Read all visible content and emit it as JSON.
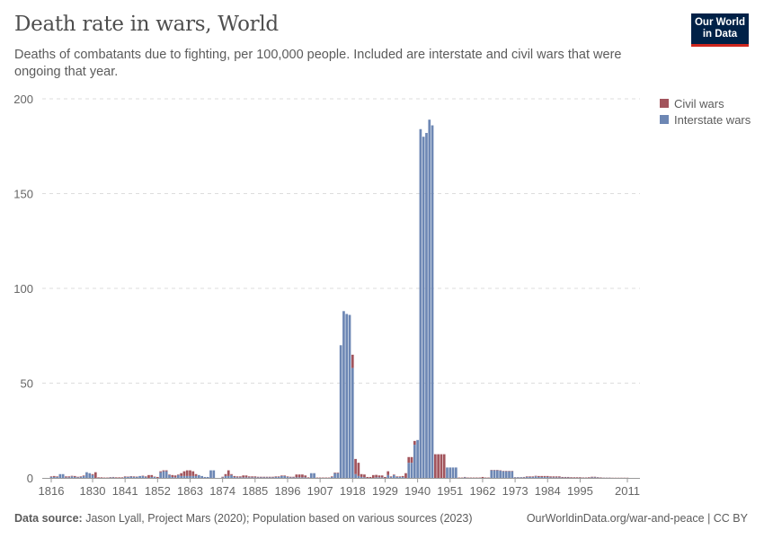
{
  "header": {
    "title": "Death rate in wars, World",
    "subtitle": "Deaths of combatants due to fighting, per 100,000 people. Included are interstate and civil wars that were ongoing that year.",
    "logo": "Our World in Data"
  },
  "footer": {
    "source_label": "Data source:",
    "source": "Jason Lyall, Project Mars (2020); Population based on various sources (2023)",
    "url": "OurWorldinData.org/war-and-peace | CC BY"
  },
  "chart_data": {
    "type": "bar",
    "stacked": true,
    "grid": true,
    "legend": "top-right",
    "ylim": [
      0,
      200
    ],
    "yticks": [
      0,
      50,
      100,
      150,
      200
    ],
    "xticks": [
      1816,
      1830,
      1841,
      1852,
      1863,
      1874,
      1885,
      1896,
      1907,
      1918,
      1929,
      1940,
      1951,
      1962,
      1973,
      1984,
      1995,
      2011
    ],
    "x": [
      1816,
      1817,
      1818,
      1819,
      1820,
      1821,
      1822,
      1823,
      1824,
      1825,
      1826,
      1827,
      1828,
      1829,
      1830,
      1831,
      1832,
      1833,
      1834,
      1835,
      1836,
      1837,
      1838,
      1839,
      1840,
      1841,
      1842,
      1843,
      1844,
      1845,
      1846,
      1847,
      1848,
      1849,
      1850,
      1851,
      1852,
      1853,
      1854,
      1855,
      1856,
      1857,
      1858,
      1859,
      1860,
      1861,
      1862,
      1863,
      1864,
      1865,
      1866,
      1867,
      1868,
      1869,
      1870,
      1871,
      1872,
      1873,
      1874,
      1875,
      1876,
      1877,
      1878,
      1879,
      1880,
      1881,
      1882,
      1883,
      1884,
      1885,
      1886,
      1887,
      1888,
      1889,
      1890,
      1891,
      1892,
      1893,
      1894,
      1895,
      1896,
      1897,
      1898,
      1899,
      1900,
      1901,
      1902,
      1903,
      1904,
      1905,
      1906,
      1907,
      1908,
      1909,
      1910,
      1911,
      1912,
      1913,
      1914,
      1915,
      1916,
      1917,
      1918,
      1919,
      1920,
      1921,
      1922,
      1923,
      1924,
      1925,
      1926,
      1927,
      1928,
      1929,
      1930,
      1931,
      1932,
      1933,
      1934,
      1935,
      1936,
      1937,
      1938,
      1939,
      1940,
      1941,
      1942,
      1943,
      1944,
      1945,
      1946,
      1947,
      1948,
      1949,
      1950,
      1951,
      1952,
      1953,
      1954,
      1955,
      1956,
      1957,
      1958,
      1959,
      1960,
      1961,
      1962,
      1963,
      1964,
      1965,
      1966,
      1967,
      1968,
      1969,
      1970,
      1971,
      1972,
      1973,
      1974,
      1975,
      1976,
      1977,
      1978,
      1979,
      1980,
      1981,
      1982,
      1983,
      1984,
      1985,
      1986,
      1987,
      1988,
      1989,
      1990,
      1991,
      1992,
      1993,
      1994,
      1995,
      1996,
      1997,
      1998,
      1999,
      2000,
      2001,
      2002,
      2003,
      2004,
      2005,
      2006,
      2007,
      2008,
      2009,
      2010,
      2011
    ],
    "series": [
      {
        "name": "Civil wars",
        "color": "#a2545c",
        "values": [
          0.3,
          0.5,
          0.3,
          0,
          0,
          0.5,
          0.5,
          0.3,
          0.5,
          0.3,
          0.3,
          0.3,
          0,
          0,
          0.5,
          3,
          0.3,
          0.3,
          0.2,
          0.2,
          0.2,
          0.2,
          0.3,
          0.3,
          0.3,
          0.3,
          0.2,
          0.2,
          0.3,
          0.2,
          0,
          0.2,
          0.3,
          1.5,
          1,
          0.2,
          0.5,
          0.5,
          0.5,
          0.5,
          0.3,
          1,
          1,
          0.3,
          1.5,
          2.5,
          3,
          3,
          2.5,
          1,
          0,
          0,
          0,
          0,
          0,
          0,
          0,
          0,
          0.3,
          1,
          3,
          0.5,
          0.5,
          0.5,
          0.5,
          1,
          1,
          0.5,
          0.5,
          0.5,
          0.3,
          0.3,
          0.3,
          0.3,
          0.3,
          0.3,
          0.3,
          0.3,
          0.3,
          0.3,
          0.3,
          0.3,
          0.3,
          1.5,
          1.5,
          1.5,
          1,
          0.3,
          0,
          0,
          0.2,
          0.2,
          0.2,
          0.2,
          0.2,
          0.3,
          0.3,
          0.3,
          0,
          0,
          0,
          0,
          7,
          8,
          7,
          1.5,
          1.5,
          0.5,
          0.5,
          1.5,
          1.3,
          1,
          1,
          0.5,
          2,
          0.3,
          0.3,
          0.3,
          0.3,
          0.5,
          2.5,
          3,
          3,
          2,
          0,
          0,
          0,
          0,
          0,
          0,
          12.5,
          12.5,
          12.5,
          12.5,
          0,
          0,
          0,
          0,
          0.2,
          0.2,
          0.2,
          0.2,
          0.2,
          0.2,
          0.2,
          0.2,
          0.5,
          0.2,
          0.2,
          0.2,
          0.2,
          0.2,
          0.2,
          0.2,
          0.2,
          0.2,
          0.2,
          0.1,
          0.1,
          0.1,
          0.2,
          0.3,
          0.3,
          0.3,
          0.3,
          0.5,
          0.5,
          0.5,
          0.5,
          0.5,
          0.5,
          0.5,
          0.5,
          0.3,
          0.3,
          0.3,
          0.3,
          0.3,
          0.3,
          0.3,
          0.2,
          0.2,
          0.3,
          0.3,
          0.3,
          0.2,
          0.2,
          0.1,
          0.1,
          0.1,
          0.1,
          0.1,
          0.1,
          0.1,
          0.1,
          0.1
        ]
      },
      {
        "name": "Interstate wars",
        "color": "#6d87b4",
        "values": [
          0.5,
          0.5,
          0.5,
          2,
          2,
          0.3,
          0.3,
          0.8,
          0.5,
          0.3,
          0.5,
          1,
          3,
          2.5,
          1.5,
          0,
          0,
          0,
          0,
          0,
          0.2,
          0.3,
          0,
          0,
          0,
          0.5,
          0.5,
          0.7,
          0.5,
          0.5,
          1,
          1,
          0.5,
          0,
          0.5,
          0.5,
          0,
          3,
          3.5,
          3.5,
          1.5,
          0.5,
          0.3,
          1.5,
          1,
          1,
          1,
          1,
          1,
          1,
          1.5,
          1,
          0.5,
          0.5,
          4,
          4,
          0,
          0,
          0.3,
          1,
          1,
          1.5,
          0.5,
          0.3,
          0.3,
          0.3,
          0.3,
          0.3,
          0.3,
          0.3,
          0.3,
          0.3,
          0.3,
          0.3,
          0.3,
          0.3,
          0.5,
          0.5,
          1,
          1,
          0.5,
          0.3,
          0.3,
          0.3,
          0.3,
          0.3,
          0.3,
          0,
          2.5,
          2.5,
          0,
          0,
          0,
          0,
          0,
          0.5,
          2.5,
          2.5,
          70,
          88,
          86.5,
          86,
          58,
          2,
          1,
          0.5,
          0.3,
          0,
          0,
          0,
          0.3,
          0.3,
          0.3,
          0,
          1.5,
          0.5,
          1.5,
          0.5,
          0.5,
          0.5,
          0,
          8,
          8,
          17.5,
          20,
          184,
          180,
          182,
          189,
          186,
          0,
          0,
          0,
          0,
          5.5,
          5.5,
          5.5,
          5.5,
          0,
          0,
          0.3,
          0,
          0,
          0,
          0,
          0,
          0,
          0,
          0,
          4,
          4,
          4,
          3.8,
          3.5,
          3.5,
          3.5,
          3.5,
          0.3,
          0.3,
          0.3,
          0.3,
          0.5,
          0.5,
          0.5,
          0.8,
          0.5,
          0.5,
          0.5,
          0.5,
          0.3,
          0.3,
          0.3,
          0.3,
          0.2,
          0.2,
          0.2,
          0.1,
          0.1,
          0.1,
          0.1,
          0.1,
          0.1,
          0.1,
          0.3,
          0.3,
          0.2,
          0.1,
          0.1,
          0.1,
          0.1,
          0,
          0,
          0,
          0,
          0,
          0
        ]
      }
    ]
  }
}
